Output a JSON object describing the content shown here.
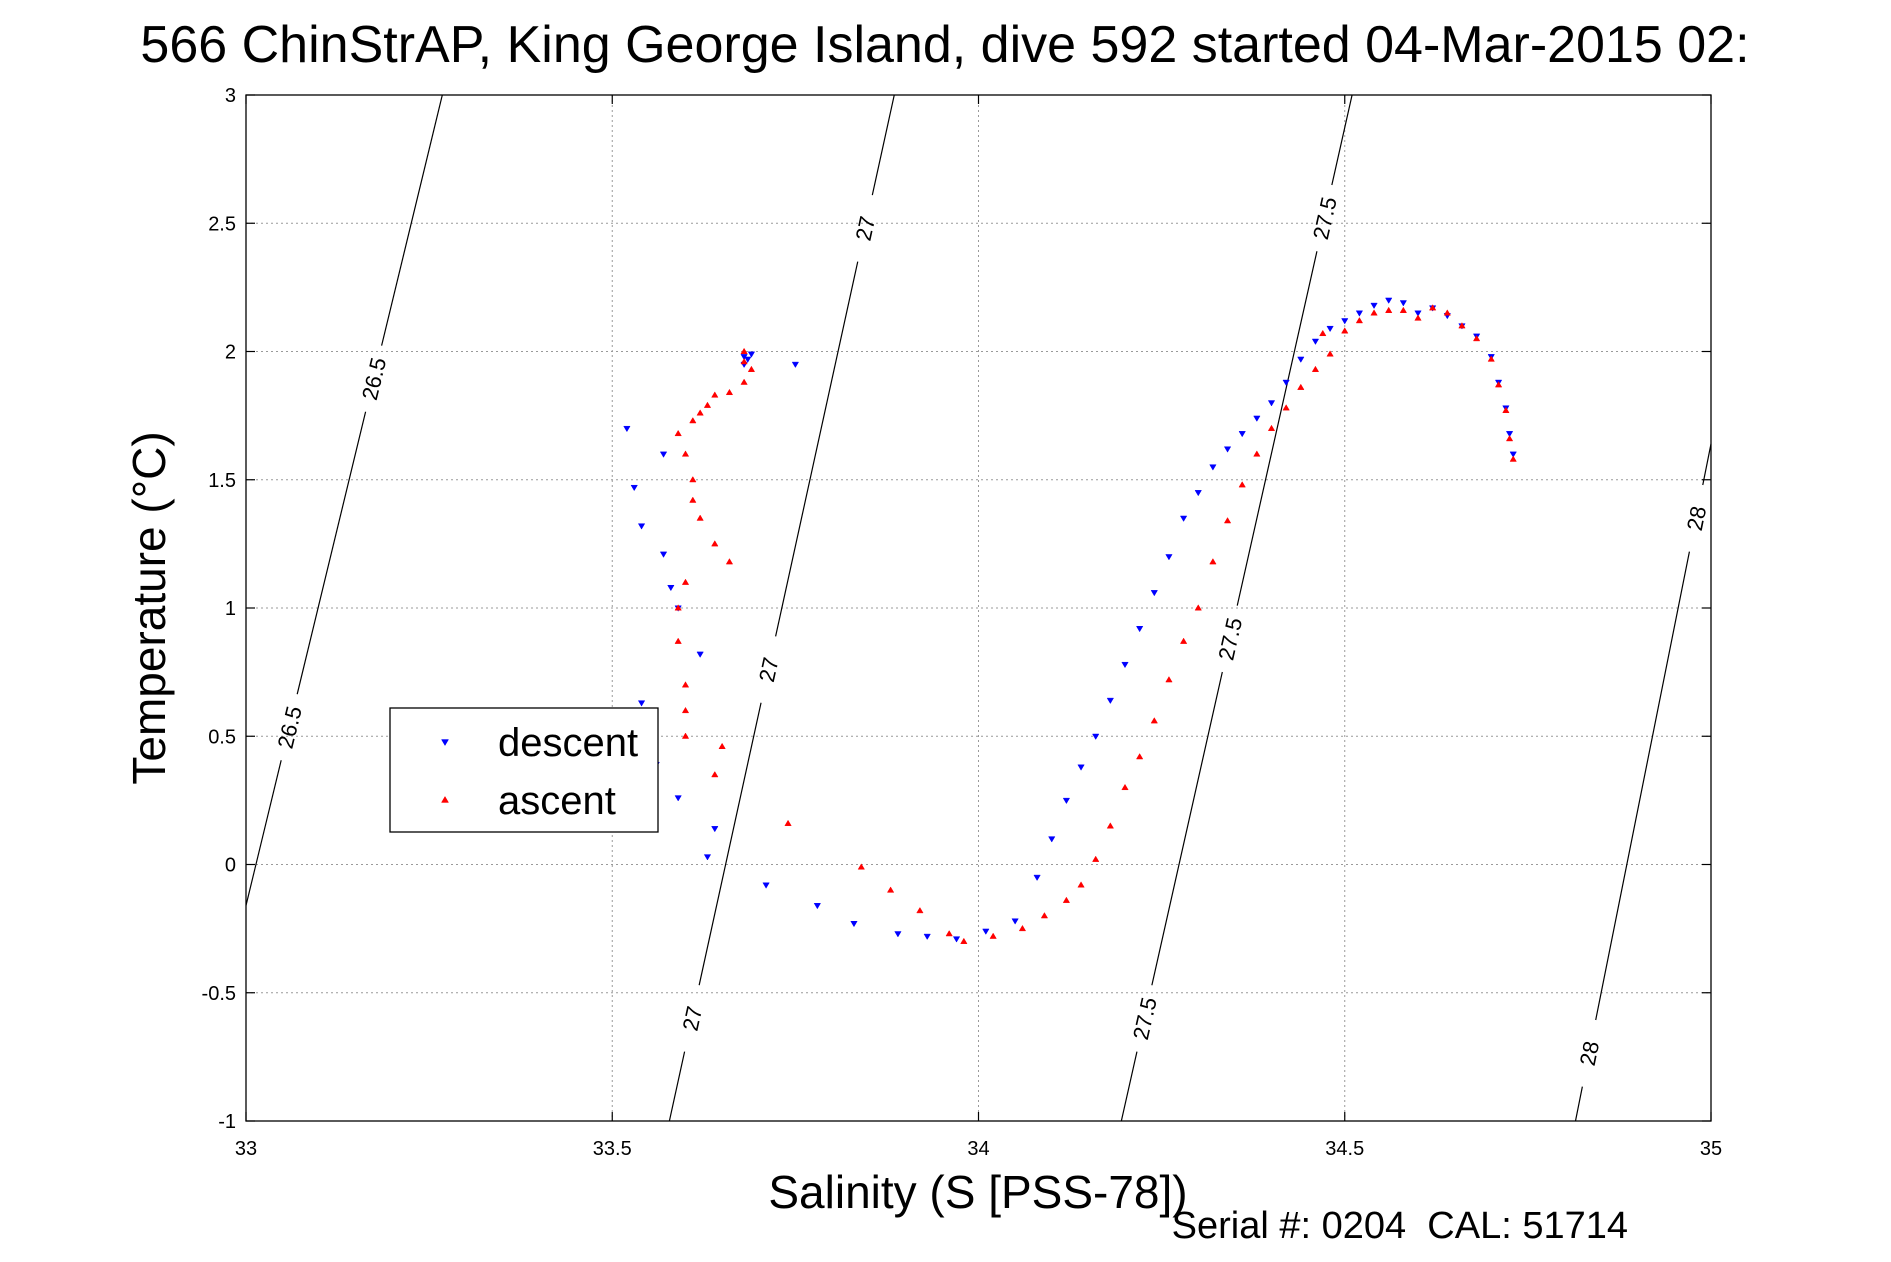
{
  "chart_data": {
    "type": "scatter",
    "title": "566 ChinStrAP, King George Island, dive 592 started 04-Mar-2015 02:",
    "xlabel": "Salinity (S [PSS-78])",
    "ylabel": "Temperature (°C)",
    "footer": "Serial #: 0204  CAL: 51714",
    "xlim": [
      33,
      35
    ],
    "ylim": [
      -1,
      3
    ],
    "xticks": [
      "33",
      "33.5",
      "34",
      "34.5",
      "35"
    ],
    "yticks": [
      "-1",
      "-0.5",
      "0",
      "0.5",
      "1",
      "1.5",
      "2",
      "2.5",
      "3"
    ],
    "grid": true,
    "legend_position": "left-center",
    "density_contours": [
      {
        "level": "26.5",
        "points": [
          [
            33.0,
            -0.16
          ],
          [
            33.268,
            3.0
          ]
        ],
        "labels": [
          0.22,
          0.65
        ]
      },
      {
        "level": "27",
        "points": [
          [
            33.578,
            -1.0
          ],
          [
            33.885,
            3.0
          ]
        ],
        "labels": [
          0.1,
          0.44,
          0.87
        ]
      },
      {
        "level": "27.5",
        "points": [
          [
            34.195,
            -1.0
          ],
          [
            34.51,
            3.0
          ]
        ],
        "labels": [
          0.1,
          0.47,
          0.88
        ]
      },
      {
        "level": "28",
        "points": [
          [
            34.815,
            -1.0
          ],
          [
            35.0,
            1.64
          ]
        ],
        "labels": [
          0.1,
          0.89
        ]
      }
    ],
    "series": [
      {
        "name": "descent",
        "color": "#0000ff",
        "marker": "triangle-down",
        "x": [
          33.68,
          33.68,
          33.685,
          33.69,
          33.75,
          33.52,
          33.53,
          33.54,
          33.57,
          33.57,
          33.58,
          33.59,
          33.62,
          33.54,
          33.56,
          33.59,
          33.64,
          33.63,
          33.71,
          33.78,
          33.83,
          33.89,
          33.93,
          33.97,
          34.01,
          34.05,
          34.08,
          34.1,
          34.12,
          34.14,
          34.16,
          34.18,
          34.2,
          34.22,
          34.24,
          34.26,
          34.28,
          34.3,
          34.32,
          34.34,
          34.36,
          34.38,
          34.4,
          34.42,
          34.44,
          34.46,
          34.48,
          34.5,
          34.52,
          34.54,
          34.56,
          34.58,
          34.6,
          34.62,
          34.64,
          34.66,
          34.68,
          34.7,
          34.71,
          34.72,
          34.725,
          34.73
        ],
        "y": [
          1.95,
          1.98,
          1.97,
          1.99,
          1.95,
          1.7,
          1.47,
          1.32,
          1.6,
          1.21,
          1.08,
          1.0,
          0.82,
          0.63,
          0.39,
          0.26,
          0.14,
          0.03,
          -0.08,
          -0.16,
          -0.23,
          -0.27,
          -0.28,
          -0.29,
          -0.26,
          -0.22,
          -0.05,
          0.1,
          0.25,
          0.38,
          0.5,
          0.64,
          0.78,
          0.92,
          1.06,
          1.2,
          1.35,
          1.45,
          1.55,
          1.62,
          1.68,
          1.74,
          1.8,
          1.88,
          1.97,
          2.04,
          2.09,
          2.12,
          2.15,
          2.18,
          2.2,
          2.19,
          2.15,
          2.17,
          2.14,
          2.1,
          2.06,
          1.98,
          1.88,
          1.78,
          1.68,
          1.6
        ]
      },
      {
        "name": "ascent",
        "color": "#ff0000",
        "marker": "triangle-up",
        "x": [
          33.68,
          33.68,
          33.69,
          33.68,
          33.66,
          33.64,
          33.63,
          33.62,
          33.61,
          33.59,
          33.6,
          33.61,
          33.61,
          33.62,
          33.64,
          33.66,
          33.6,
          33.59,
          33.59,
          33.6,
          33.6,
          33.6,
          33.65,
          33.64,
          33.74,
          33.84,
          33.88,
          33.92,
          33.96,
          33.98,
          34.02,
          34.06,
          34.09,
          34.12,
          34.14,
          34.16,
          34.18,
          34.2,
          34.22,
          34.24,
          34.26,
          34.28,
          34.3,
          34.32,
          34.34,
          34.36,
          34.38,
          34.4,
          34.42,
          34.44,
          34.46,
          34.48,
          34.47,
          34.5,
          34.52,
          34.54,
          34.56,
          34.58,
          34.6,
          34.62,
          34.64,
          34.66,
          34.68,
          34.7,
          34.71,
          34.72,
          34.725,
          34.73
        ],
        "y": [
          2.0,
          1.96,
          1.93,
          1.88,
          1.84,
          1.83,
          1.79,
          1.76,
          1.73,
          1.68,
          1.6,
          1.5,
          1.42,
          1.35,
          1.25,
          1.18,
          1.1,
          1.0,
          0.87,
          0.7,
          0.6,
          0.5,
          0.46,
          0.35,
          0.16,
          -0.01,
          -0.1,
          -0.18,
          -0.27,
          -0.3,
          -0.28,
          -0.25,
          -0.2,
          -0.14,
          -0.08,
          0.02,
          0.15,
          0.3,
          0.42,
          0.56,
          0.72,
          0.87,
          1.0,
          1.18,
          1.34,
          1.48,
          1.6,
          1.7,
          1.78,
          1.86,
          1.93,
          1.99,
          2.07,
          2.08,
          2.12,
          2.15,
          2.16,
          2.16,
          2.13,
          2.17,
          2.15,
          2.1,
          2.05,
          1.97,
          1.87,
          1.77,
          1.66,
          1.58
        ]
      }
    ]
  }
}
